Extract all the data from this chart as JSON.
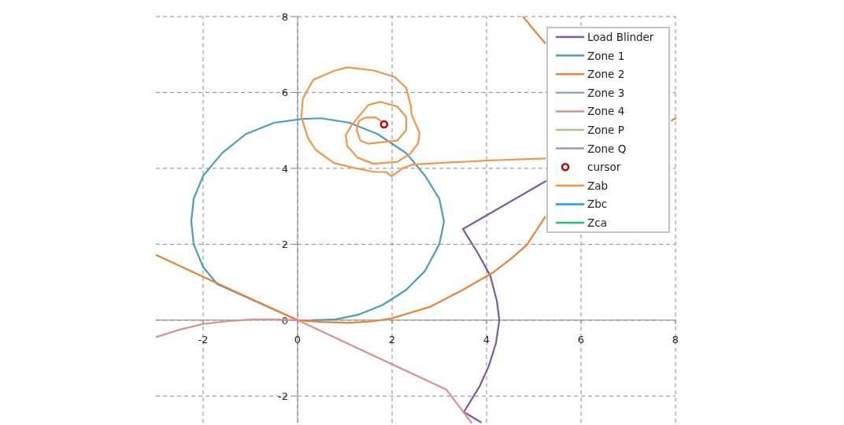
{
  "chart_data": {
    "type": "line",
    "xlim": [
      -3,
      8
    ],
    "ylim": [
      -2.7,
      8
    ],
    "xticks": [
      -2,
      0,
      2,
      4,
      6,
      8
    ],
    "yticks": [
      -2,
      0,
      2,
      4,
      6,
      8
    ],
    "grid": true,
    "legend": "top right",
    "marker": "none",
    "line_style": "solid",
    "series": [
      {
        "name": "Load Blinder",
        "color": "#7a5c9a",
        "x": [
          5.25,
          3.5,
          3.8,
          4.08,
          4.22,
          4.27,
          4.2,
          4.05,
          3.85,
          3.52,
          3.88
        ],
        "values": [
          3.66,
          2.4,
          1.8,
          1.17,
          0.5,
          0,
          -0.6,
          -1.2,
          -1.75,
          -2.42,
          -2.69
        ]
      },
      {
        "name": "Zone 1",
        "color": "#4a9fb5",
        "x": [
          0,
          -1.7,
          -2.0,
          -2.2,
          -2.25,
          -2.2,
          -2.0,
          -1.6,
          -1.1,
          -0.5,
          0.1,
          0.5,
          1.1,
          1.7,
          2.3,
          2.7,
          3.0,
          3.1,
          3.0,
          2.7,
          2.3,
          1.8,
          1.3,
          0.8,
          0.3
        ],
        "values": [
          0,
          0.95,
          1.4,
          2.0,
          2.6,
          3.2,
          3.8,
          4.4,
          4.9,
          5.2,
          5.3,
          5.32,
          5.2,
          4.9,
          4.4,
          3.8,
          3.2,
          2.6,
          2.0,
          1.3,
          0.8,
          0.4,
          0.15,
          0.02,
          0
        ]
      },
      {
        "name": "Zone 2",
        "color": "#e5843a",
        "x": [
          -3,
          -1.7,
          0,
          0.5,
          1.1,
          1.6,
          2,
          2.8,
          3.5,
          4.13,
          4.5,
          4.85,
          5.24,
          null,
          4.77,
          5.0,
          5.24,
          null,
          7.92,
          8
        ],
        "values": [
          1.72,
          0.97,
          0,
          -0.05,
          -0.07,
          -0.03,
          0.05,
          0.35,
          0.8,
          1.25,
          1.6,
          1.98,
          2.72,
          null,
          8,
          7.65,
          7.3,
          null,
          5.26,
          5.32
        ]
      },
      {
        "name": "Zone 3",
        "color": "#8ea9d4"
      },
      {
        "name": "Zone 4",
        "color": "#d99191",
        "x": [
          -3,
          -2.5,
          -2,
          -1.5,
          -1,
          -0.5,
          0,
          3.15,
          3.68
        ],
        "values": [
          -0.45,
          -0.25,
          -0.1,
          -0.03,
          0.02,
          0.02,
          0,
          -1.83,
          -2.7
        ]
      },
      {
        "name": "Zone P",
        "color": "#a9c58a"
      },
      {
        "name": "Zone Q",
        "color": "#a596c0"
      },
      {
        "name": "cursor",
        "type": "scatter",
        "marker": "circle",
        "color": "#c00000",
        "x": [
          1.83
        ],
        "values": [
          5.16
        ]
      },
      {
        "name": "Zab",
        "color": "#f4954a",
        "x": [
          5.24,
          4.11,
          2.99,
          2.44,
          2.22,
          1.99,
          1.88,
          1.61,
          1.16,
          0.77,
          0.38,
          0.22,
          0.08,
          0.11,
          0.33,
          0.77,
          1.05,
          1.61,
          2.05,
          2.3,
          2.4,
          2.41,
          2.58,
          2.55,
          2.38,
          2.11,
          1.61,
          1.27,
          1.05,
          1.02,
          1.13,
          1.33,
          1.5,
          1.75,
          2.11,
          2.3,
          2.3,
          2.11,
          1.72,
          1.5,
          1.33,
          1.25,
          1.3,
          1.44,
          1.66,
          1.76
        ],
        "values": [
          4.26,
          4.21,
          4.14,
          4.1,
          4.0,
          3.79,
          3.9,
          3.91,
          4.02,
          4.14,
          4.49,
          4.8,
          5.35,
          5.84,
          6.33,
          6.57,
          6.66,
          6.58,
          6.41,
          6.12,
          5.63,
          5.42,
          4.94,
          4.66,
          4.38,
          4.17,
          4.12,
          4.28,
          4.59,
          4.87,
          5.11,
          5.42,
          5.67,
          5.75,
          5.63,
          5.35,
          5.01,
          4.73,
          4.68,
          4.65,
          4.73,
          5.01,
          5.25,
          5.34,
          5.34,
          5.25
        ]
      },
      {
        "name": "Zbc",
        "color": "#1e9bff"
      },
      {
        "name": "Zca",
        "color": "#2eb872"
      }
    ]
  }
}
